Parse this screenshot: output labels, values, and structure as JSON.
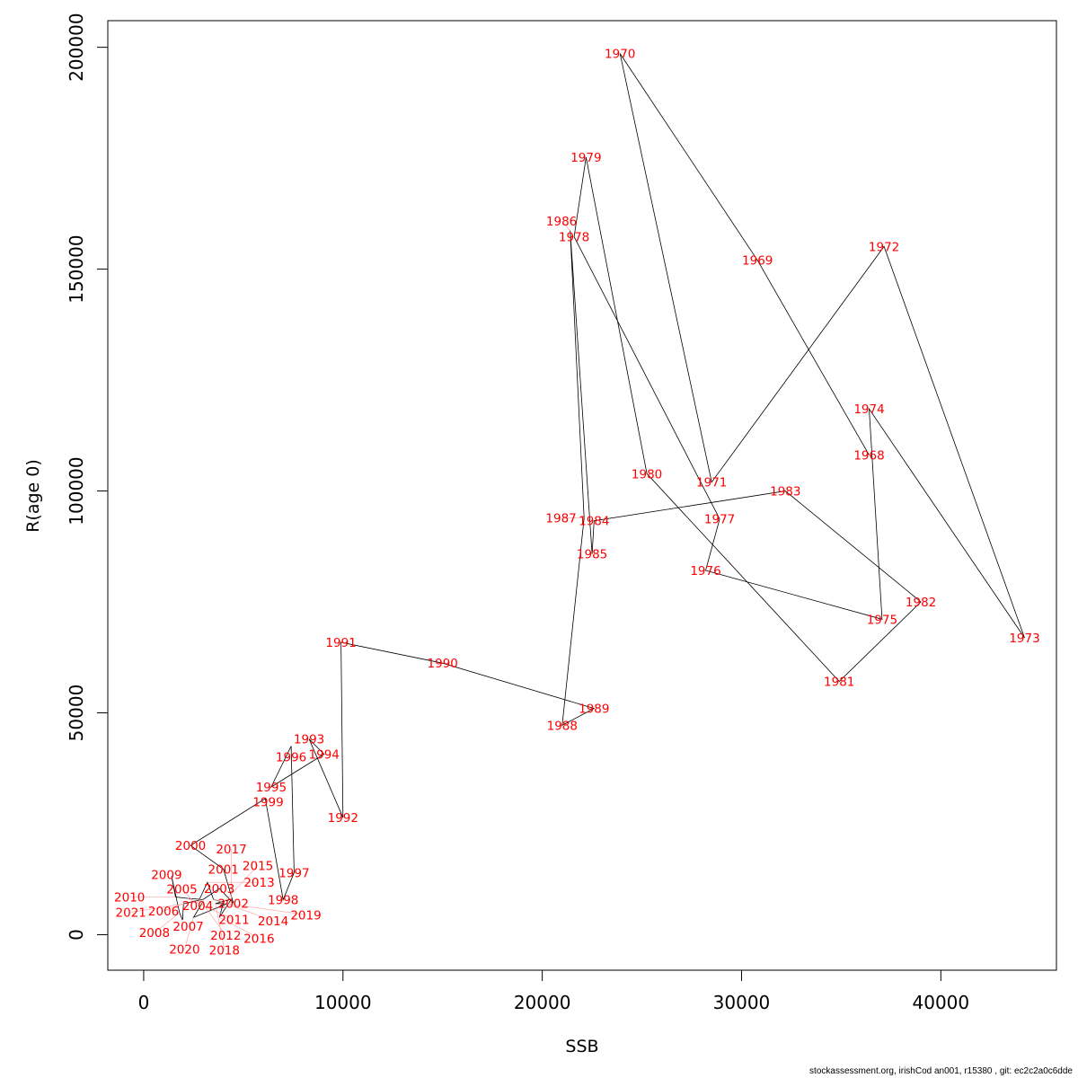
{
  "chart_data": {
    "type": "line",
    "title": "",
    "xlabel": "SSB",
    "ylabel": "R(age 0)",
    "xlim": [
      -1800,
      45800
    ],
    "ylim": [
      -8000,
      206000
    ],
    "xticks": [
      0,
      10000,
      20000,
      30000,
      40000
    ],
    "yticks": [
      0,
      50000,
      100000,
      150000,
      200000
    ],
    "grid": false,
    "line_color": "#000000",
    "label_color": "#ff0000",
    "points": [
      {
        "year": "1968",
        "x": 36400,
        "y": 108100
      },
      {
        "year": "1969",
        "x": 30800,
        "y": 152000
      },
      {
        "year": "1970",
        "x": 23900,
        "y": 198600
      },
      {
        "year": "1971",
        "x": 28500,
        "y": 102000
      },
      {
        "year": "1972",
        "x": 37150,
        "y": 155100
      },
      {
        "year": "1973",
        "x": 44200,
        "y": 66900
      },
      {
        "year": "1974",
        "x": 36400,
        "y": 118500
      },
      {
        "year": "1975",
        "x": 37050,
        "y": 71100
      },
      {
        "year": "1976",
        "x": 28200,
        "y": 82100
      },
      {
        "year": "1977",
        "x": 28900,
        "y": 93700
      },
      {
        "year": "1978",
        "x": 21600,
        "y": 157300
      },
      {
        "year": "1979",
        "x": 22200,
        "y": 175200
      },
      {
        "year": "1980",
        "x": 25250,
        "y": 103900
      },
      {
        "year": "1981",
        "x": 34900,
        "y": 57100
      },
      {
        "year": "1982",
        "x": 39000,
        "y": 75000
      },
      {
        "year": "1983",
        "x": 32200,
        "y": 100000
      },
      {
        "year": "1984",
        "x": 22600,
        "y": 93300
      },
      {
        "year": "1985",
        "x": 22500,
        "y": 85800
      },
      {
        "year": "1986",
        "x": 21400,
        "y": 158700
      },
      {
        "year": "1987",
        "x": 22100,
        "y": 93900
      },
      {
        "year": "1988",
        "x": 21000,
        "y": 47200
      },
      {
        "year": "1989",
        "x": 22600,
        "y": 51000
      },
      {
        "year": "1990",
        "x": 15000,
        "y": 61200
      },
      {
        "year": "1991",
        "x": 9900,
        "y": 65900
      },
      {
        "year": "1992",
        "x": 10000,
        "y": 26400
      },
      {
        "year": "1993",
        "x": 8300,
        "y": 44100
      },
      {
        "year": "1994",
        "x": 9050,
        "y": 40700
      },
      {
        "year": "1995",
        "x": 6400,
        "y": 33300
      },
      {
        "year": "1996",
        "x": 7400,
        "y": 42500
      },
      {
        "year": "1997",
        "x": 7550,
        "y": 14000
      },
      {
        "year": "1998",
        "x": 7000,
        "y": 7900
      },
      {
        "year": "1999",
        "x": 6100,
        "y": 30700
      },
      {
        "year": "2000",
        "x": 2350,
        "y": 20100
      },
      {
        "year": "2001",
        "x": 4000,
        "y": 14800
      },
      {
        "year": "2002",
        "x": 4500,
        "y": 7100
      },
      {
        "year": "2003",
        "x": 3800,
        "y": 10400
      },
      {
        "year": "2004",
        "x": 3000,
        "y": 8000
      },
      {
        "year": "2005",
        "x": 2500,
        "y": 7500
      },
      {
        "year": "2006",
        "x": 2000,
        "y": 7000
      },
      {
        "year": "2007",
        "x": 1950,
        "y": 3300
      },
      {
        "year": "2008",
        "x": 1800,
        "y": 4900
      },
      {
        "year": "2009",
        "x": 1400,
        "y": 13200
      },
      {
        "year": "2010",
        "x": 1600,
        "y": 8500
      },
      {
        "year": "2011",
        "x": 2200,
        "y": 8200
      },
      {
        "year": "2012",
        "x": 2800,
        "y": 8000
      },
      {
        "year": "2013",
        "x": 3200,
        "y": 11800
      },
      {
        "year": "2014",
        "x": 3500,
        "y": 8000
      },
      {
        "year": "2015",
        "x": 4000,
        "y": 7200
      },
      {
        "year": "2016",
        "x": 3800,
        "y": 3900
      },
      {
        "year": "2017",
        "x": 4400,
        "y": 8000
      },
      {
        "year": "2018",
        "x": 3600,
        "y": 7000
      },
      {
        "year": "2019",
        "x": 4200,
        "y": 7000
      },
      {
        "year": "2020",
        "x": 2500,
        "y": 3900
      },
      {
        "year": "2021",
        "x": 3000,
        "y": 7600
      }
    ]
  },
  "footer": "stockassessment.org, irishCod  an001, r15380 , git: ec2c2a0c6dde"
}
